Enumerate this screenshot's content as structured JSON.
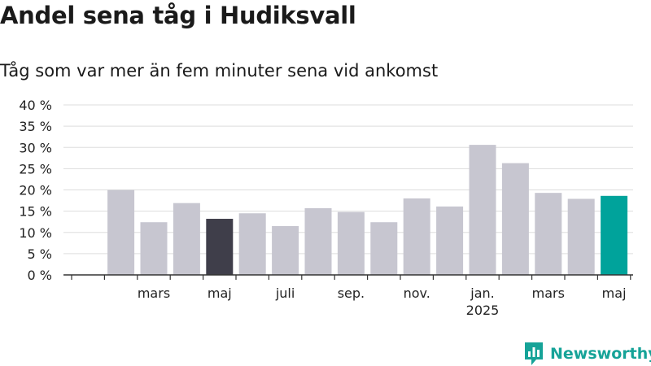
{
  "title": "Andel sena tåg i Hudiksvall",
  "subtitle": "Tåg som var mer än fem minuter sena vid ankomst",
  "brand": {
    "name": "Newsworthy",
    "color": "#16a398"
  },
  "colors": {
    "bar": "#c7c6d0",
    "highlight_dark": "#3f3e4a",
    "highlight_latest": "#00a39b",
    "grid": "#dddddd",
    "axis": "#333333"
  },
  "chart_data": {
    "type": "bar",
    "title": "Andel sena tåg i Hudiksvall",
    "subtitle": "Tåg som var mer än fem minuter sena vid ankomst",
    "x": [
      "2024-01",
      "2024-02",
      "2024-03",
      "2024-04",
      "2024-05",
      "2024-06",
      "2024-07",
      "2024-08",
      "2024-09",
      "2024-10",
      "2024-11",
      "2024-12",
      "2025-01",
      "2025-02",
      "2025-03",
      "2025-04",
      "2025-05"
    ],
    "values": [
      null,
      20.0,
      12.4,
      16.9,
      13.2,
      14.5,
      11.5,
      15.7,
      14.8,
      12.4,
      18.0,
      16.1,
      30.6,
      26.3,
      19.3,
      17.9,
      18.6
    ],
    "highlight": {
      "2024-05": "highlight_dark",
      "2025-05": "highlight_latest"
    },
    "x_tick_labels": [
      {
        "x": "2024-03",
        "label": "mars"
      },
      {
        "x": "2024-05",
        "label": "maj"
      },
      {
        "x": "2024-07",
        "label": "juli"
      },
      {
        "x": "2024-09",
        "label": "sep."
      },
      {
        "x": "2024-11",
        "label": "nov."
      },
      {
        "x": "2025-01",
        "label": "jan.",
        "sublabel": "2025"
      },
      {
        "x": "2025-03",
        "label": "mars"
      },
      {
        "x": "2025-05",
        "label": "maj"
      }
    ],
    "y_ticks": [
      0,
      5,
      10,
      15,
      20,
      25,
      30,
      35,
      40
    ],
    "y_tick_format": "{v} %",
    "ylim": [
      0,
      40
    ],
    "grid": true,
    "legend": "none"
  }
}
